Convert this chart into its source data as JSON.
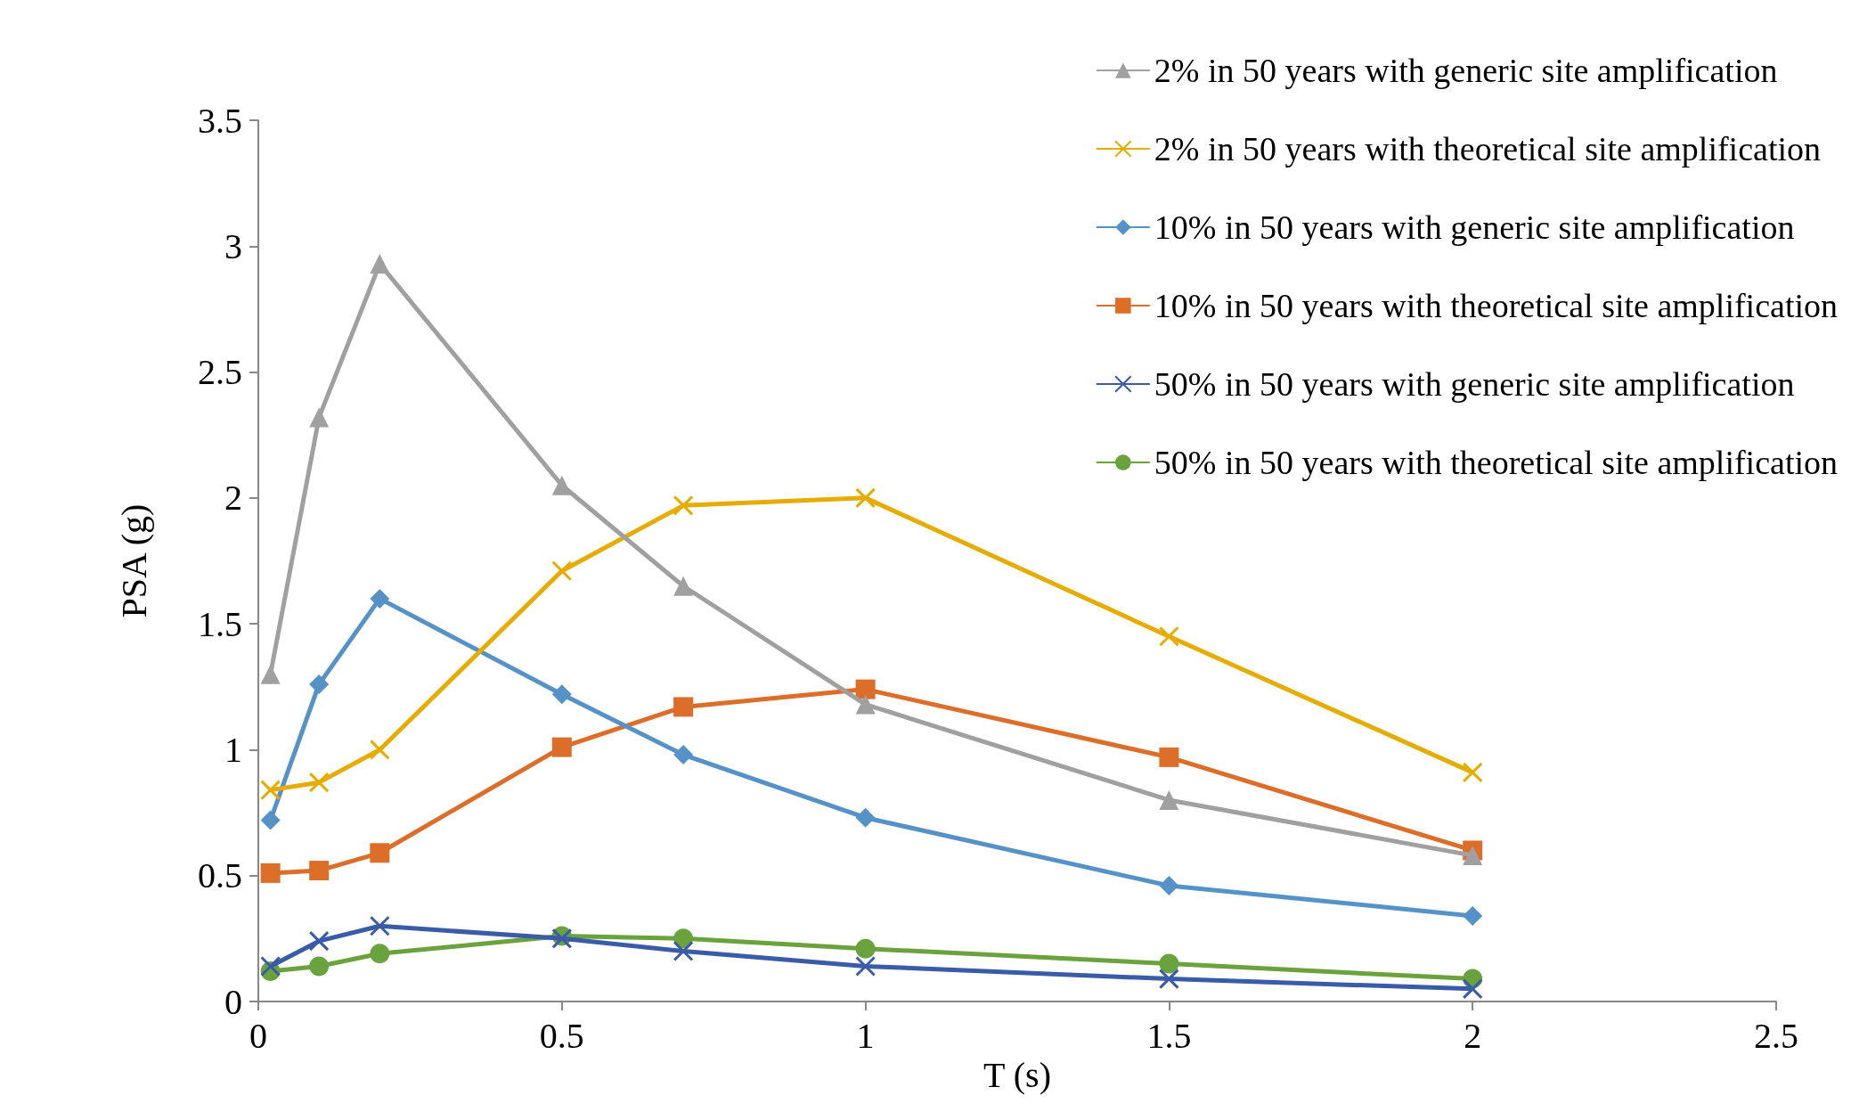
{
  "chart_data": {
    "type": "line",
    "xlabel": "T (s)",
    "ylabel": "PSA (g)",
    "x": [
      0.02,
      0.1,
      0.2,
      0.5,
      0.7,
      1,
      1.5,
      2
    ],
    "xlim": [
      0,
      2.5
    ],
    "xticks": [
      0,
      0.5,
      1,
      1.5,
      2,
      2.5
    ],
    "ylim": [
      0,
      3.5
    ],
    "yticks": [
      0,
      0.5,
      1,
      1.5,
      2,
      2.5,
      3,
      3.5
    ],
    "grid": false,
    "legend": "top right",
    "line_style": "solid",
    "series": [
      {
        "name": "2% in 50 years with generic site amplification",
        "color": "#a0a0a0",
        "marker": "triangle",
        "values": [
          1.3,
          2.32,
          2.93,
          2.05,
          1.65,
          1.18,
          0.8,
          0.58
        ]
      },
      {
        "name": "2% in 50 years with theoretical site amplification",
        "color": "#e6ac00",
        "marker": "cross",
        "values": [
          0.84,
          0.87,
          1.0,
          1.71,
          1.97,
          2.0,
          1.45,
          0.91
        ]
      },
      {
        "name": "10% in 50 years with generic site amplification",
        "color": "#5592c8",
        "marker": "diamond",
        "values": [
          0.72,
          1.26,
          1.6,
          1.22,
          0.98,
          0.73,
          0.46,
          0.34
        ]
      },
      {
        "name": "10% in 50 years with theoretical site amplification",
        "color": "#dc6e2a",
        "marker": "square",
        "values": [
          0.51,
          0.52,
          0.59,
          1.01,
          1.17,
          1.24,
          0.97,
          0.6
        ]
      },
      {
        "name": "50% in 50 years with generic site amplification",
        "color": "#3a5ba8",
        "marker": "cross",
        "values": [
          0.14,
          0.24,
          0.3,
          0.25,
          0.2,
          0.14,
          0.09,
          0.05
        ]
      },
      {
        "name": "50% in 50 years with theoretical site amplification",
        "color": "#6aa23e",
        "marker": "circle",
        "values": [
          0.12,
          0.14,
          0.19,
          0.26,
          0.25,
          0.21,
          0.15,
          0.09
        ]
      }
    ]
  }
}
